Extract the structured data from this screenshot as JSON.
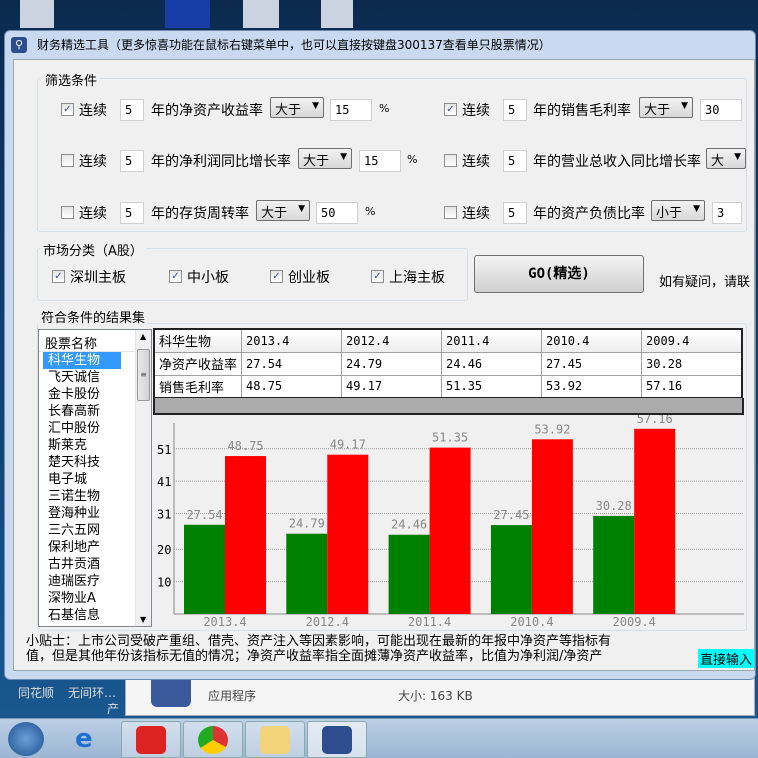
{
  "window": {
    "title": "财务精选工具（更多惊喜功能在鼠标右键菜单中，也可以直接按键盘300137查看单只股票情况）"
  },
  "filters": {
    "group_label": "筛选条件",
    "rows": [
      {
        "checked": true,
        "prefix": "连续",
        "years": "5",
        "metric": "年的净资产收益率",
        "op": "大于",
        "value": "15",
        "unit": "%"
      },
      {
        "checked": true,
        "prefix": "连续",
        "years": "5",
        "metric": "年的销售毛利率",
        "op": "大于",
        "value": "30",
        "unit": ""
      },
      {
        "checked": false,
        "prefix": "连续",
        "years": "5",
        "metric": "年的净利润同比增长率",
        "op": "大于",
        "value": "15",
        "unit": "%"
      },
      {
        "checked": false,
        "prefix": "连续",
        "years": "5",
        "metric": "年的营业总收入同比增长率",
        "op": "大",
        "value": "",
        "unit": ""
      },
      {
        "checked": false,
        "prefix": "连续",
        "years": "5",
        "metric": "年的存货周转率",
        "op": "大于",
        "value": "50",
        "unit": "%"
      },
      {
        "checked": false,
        "prefix": "连续",
        "years": "5",
        "metric": "年的资产负债比率",
        "op": "小于",
        "value": "3",
        "unit": ""
      }
    ]
  },
  "market": {
    "group_label": "市场分类（A股）",
    "items": [
      {
        "label": "深圳主板",
        "checked": true
      },
      {
        "label": "中小板",
        "checked": true
      },
      {
        "label": "创业板",
        "checked": true
      },
      {
        "label": "上海主板",
        "checked": true
      }
    ]
  },
  "go_button": "GO(精选)",
  "contact_text": "如有疑问，请联",
  "results": {
    "group_label": "符合条件的结果集",
    "list_header": "股票名称",
    "stocks": [
      "科华生物",
      "飞天诚信",
      "金卡股份",
      "长春高新",
      "汇中股份",
      "斯莱克",
      "楚天科技",
      "电子城",
      "三诺生物",
      "登海种业",
      "三六五网",
      "保利地产",
      "古井贡酒",
      "迪瑞医疗",
      "深物业A",
      "石基信息"
    ],
    "selected": "科华生物"
  },
  "table": {
    "header": [
      "科华生物",
      "2013.4",
      "2012.4",
      "2011.4",
      "2010.4",
      "2009.4"
    ],
    "rows": [
      [
        "净资产收益率",
        "27.54",
        "24.79",
        "24.46",
        "27.45",
        "30.28"
      ],
      [
        "销售毛利率",
        "48.75",
        "49.17",
        "51.35",
        "53.92",
        "57.16"
      ]
    ]
  },
  "chart_data": {
    "type": "bar",
    "categories": [
      "2013.4",
      "2012.4",
      "2011.4",
      "2010.4",
      "2009.4"
    ],
    "series": [
      {
        "values": [
          27.54,
          24.79,
          24.46,
          27.45,
          30.28
        ],
        "color": "#008000"
      },
      {
        "values": [
          48.75,
          49.17,
          51.35,
          53.92,
          57.16
        ],
        "color": "#ff0000"
      }
    ],
    "yticks": [
      "10",
      "20",
      "31",
      "41",
      "51"
    ],
    "grid": true
  },
  "tip": {
    "line1": "小贴士：上市公司受破产重组、借壳、资产注入等因素影响，可能出现在最新的年报中净资产等指标有",
    "line2": "值，但是其他年份该指标无值的情况；净资产收益率指全面摊薄净资产收益率，比值为净利润/净资产",
    "link": "直接输入"
  },
  "background": {
    "desktop_labels": [
      "同花顺",
      "无间环…",
      "产"
    ],
    "file_type": "应用程序",
    "file_size": "大小: 163 KB"
  }
}
